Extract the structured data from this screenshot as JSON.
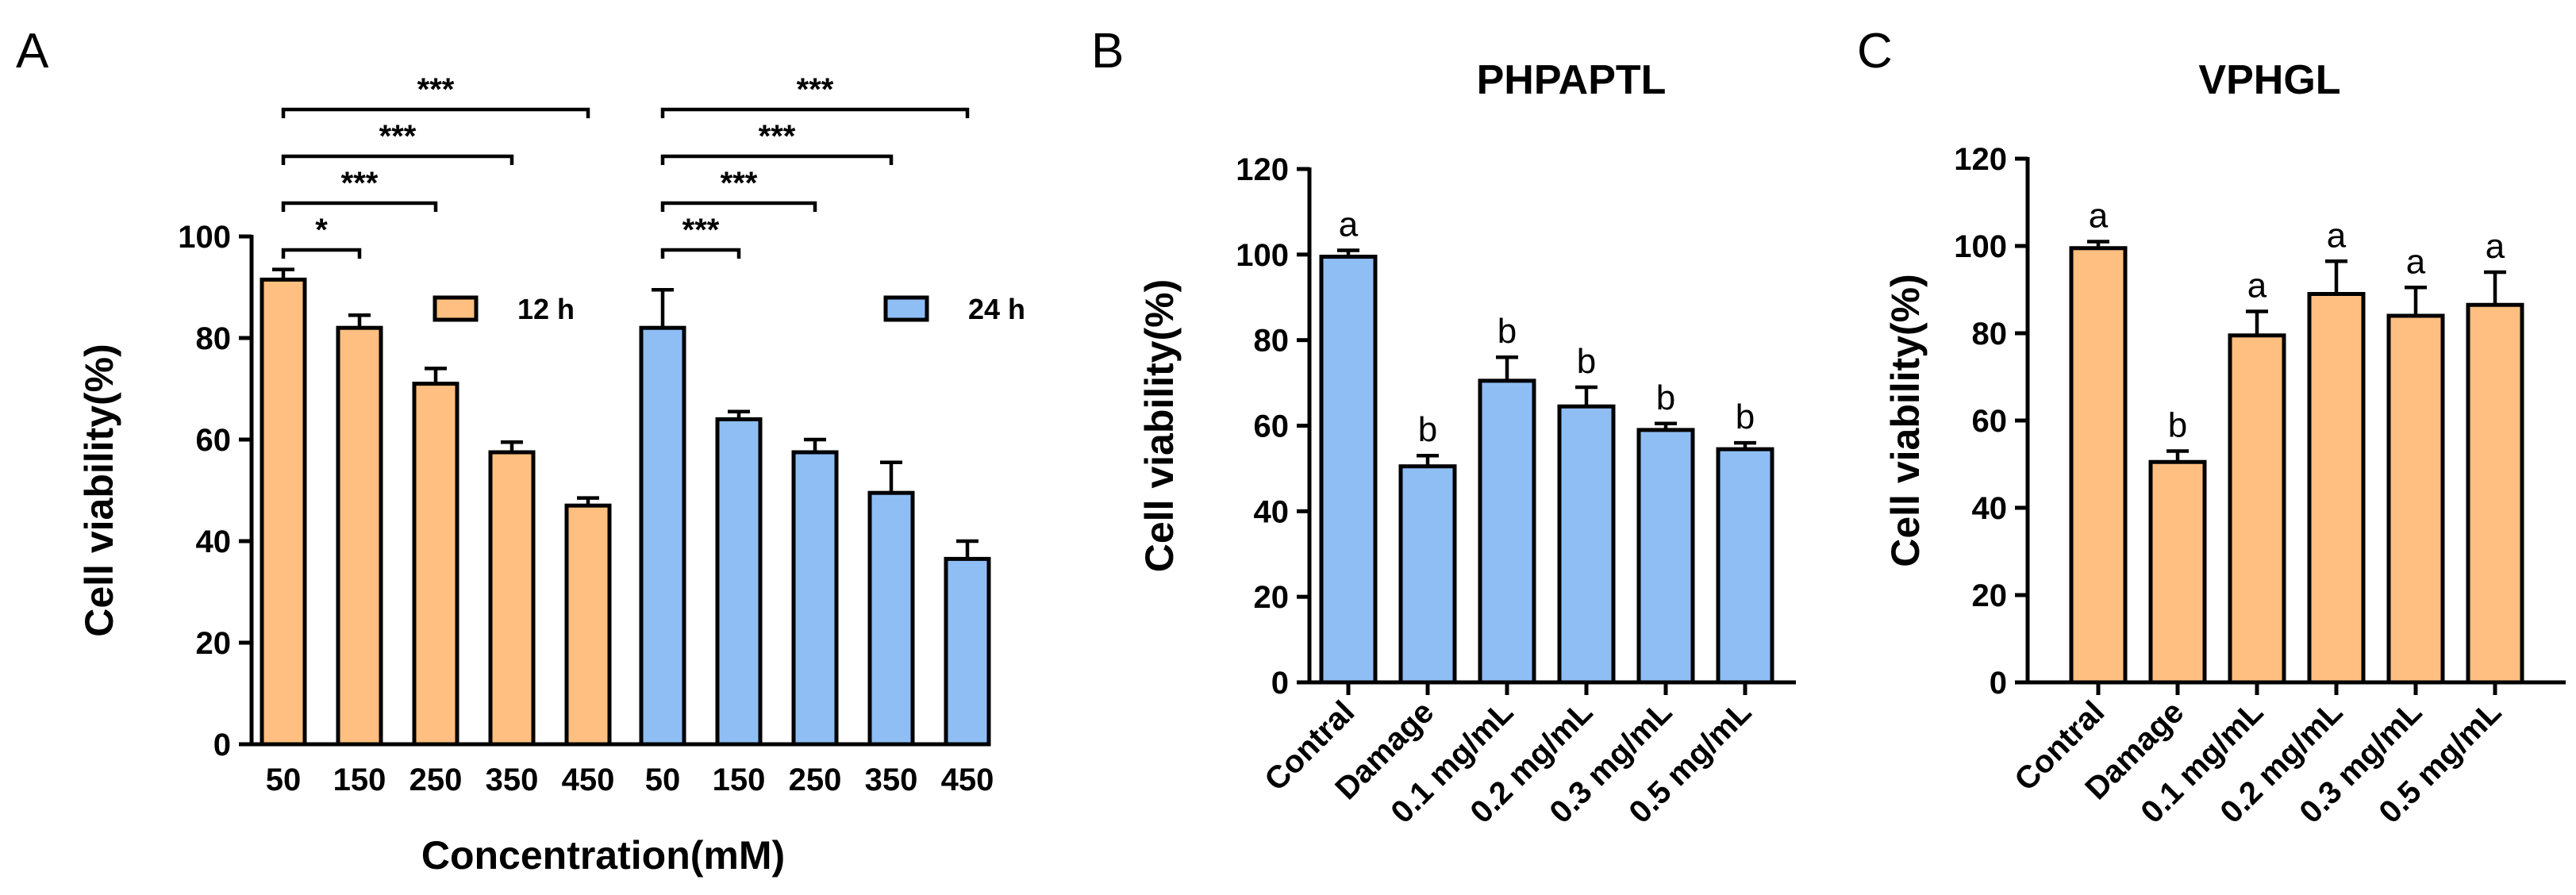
{
  "colors": {
    "orange": "#FFBF80",
    "blue": "#8FBEF5",
    "axis": "#000000"
  },
  "panels": {
    "A": {
      "letter": "A"
    },
    "B": {
      "letter": "B"
    },
    "C": {
      "letter": "C"
    }
  },
  "chart_data": [
    {
      "type": "bar",
      "panel": "A",
      "title": "",
      "xlabel": "Concentration(mM)",
      "ylabel": "Cell viability(%)",
      "ylim": [
        0,
        100
      ],
      "yticks": [
        "0",
        "20",
        "40",
        "60",
        "80",
        "100"
      ],
      "categories": [
        "50",
        "150",
        "250",
        "350",
        "450"
      ],
      "series": [
        {
          "name": "12 h",
          "color": "#FFBF80",
          "values": [
            91.5,
            82,
            71,
            57.5,
            47
          ],
          "errors": [
            2,
            2.5,
            3,
            2,
            1.5
          ]
        },
        {
          "name": "24 h",
          "color": "#8FBEF5",
          "values": [
            82,
            64,
            57.5,
            49.5,
            36.5
          ],
          "errors": [
            7.5,
            1.5,
            2.5,
            6,
            3.5
          ]
        }
      ],
      "significance": [
        {
          "series": "12 h",
          "label": "*",
          "from": "50",
          "to": "150"
        },
        {
          "series": "12 h",
          "label": "***",
          "from": "50",
          "to": "250"
        },
        {
          "series": "12 h",
          "label": "***",
          "from": "50",
          "to": "350"
        },
        {
          "series": "12 h",
          "label": "***",
          "from": "50",
          "to": "450"
        },
        {
          "series": "24 h",
          "label": "***",
          "from": "50",
          "to": "150"
        },
        {
          "series": "24 h",
          "label": "***",
          "from": "50",
          "to": "250"
        },
        {
          "series": "24 h",
          "label": "***",
          "from": "50",
          "to": "350"
        },
        {
          "series": "24 h",
          "label": "***",
          "from": "50",
          "to": "450"
        }
      ]
    },
    {
      "type": "bar",
      "panel": "B",
      "title": "PHPAPTL",
      "xlabel": "",
      "ylabel": "Cell viability(%)",
      "ylim": [
        0,
        120
      ],
      "yticks": [
        "0",
        "20",
        "40",
        "60",
        "80",
        "100",
        "120"
      ],
      "color": "#8FBEF5",
      "categories": [
        "Contral",
        "Damage",
        "0.1 mg/mL",
        "0.2 mg/mL",
        "0.3 mg/mL",
        "0.5 mg/mL"
      ],
      "values": [
        99.5,
        50.5,
        70.5,
        64.5,
        59,
        54.5
      ],
      "errors": [
        1.5,
        2.5,
        5.5,
        4.5,
        1.5,
        1.5
      ],
      "letters": [
        "a",
        "b",
        "b",
        "b",
        "b",
        "b"
      ]
    },
    {
      "type": "bar",
      "panel": "C",
      "title": "VPHGL",
      "xlabel": "",
      "ylabel": "Cell viability(%)",
      "ylim": [
        0,
        120
      ],
      "yticks": [
        "0",
        "20",
        "40",
        "60",
        "80",
        "100",
        "120"
      ],
      "color": "#FFBF80",
      "categories": [
        "Contral",
        "Damage",
        "0.1 mg/mL",
        "0.2 mg/mL",
        "0.3 mg/mL",
        "0.5 mg/mL"
      ],
      "values": [
        99.5,
        50.5,
        79.5,
        89,
        84,
        86.5
      ],
      "errors": [
        1.5,
        2.5,
        5.5,
        7.5,
        6.5,
        7.5
      ],
      "letters": [
        "a",
        "b",
        "a",
        "a",
        "a",
        "a"
      ]
    }
  ]
}
